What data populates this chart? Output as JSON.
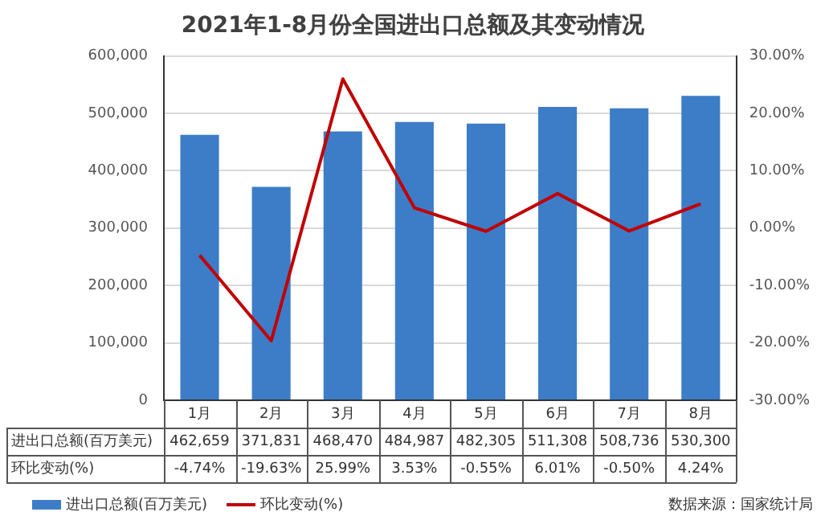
{
  "chart_data": {
    "type": "bar",
    "title": "2021年1-8月份全国进出口总额及其变动情况",
    "categories": [
      "1月",
      "2月",
      "3月",
      "4月",
      "5月",
      "6月",
      "7月",
      "8月"
    ],
    "series": [
      {
        "name": "进出口总额(百万美元)",
        "color": "#3d7dc8",
        "values": [
          462659,
          371831,
          468470,
          484987,
          482305,
          511308,
          508736,
          530300
        ],
        "value_labels": [
          "462,659",
          "371,831",
          "468,470",
          "484,987",
          "482,305",
          "511,308",
          "508,736",
          "530,300"
        ]
      },
      {
        "name": "环比变动(%)",
        "type": "line",
        "axis": "y2",
        "color": "#c00000",
        "values": [
          -4.74,
          -19.63,
          25.99,
          3.53,
          -0.55,
          6.01,
          -0.5,
          4.24
        ],
        "value_labels": [
          "-4.74%",
          "-19.63%",
          "25.99%",
          "3.53%",
          "-0.55%",
          "6.01%",
          "-0.50%",
          "4.24%"
        ]
      }
    ],
    "ylim": [
      0,
      600000
    ],
    "yticks": [
      0,
      {
        "value": 100000,
        "label": "100,000"
      },
      {
        "value": 200000,
        "label": "200,000"
      },
      {
        "value": 300000,
        "label": "300,000"
      },
      {
        "value": 400000,
        "label": "400,000"
      },
      {
        "value": 500000,
        "label": "500,000"
      },
      {
        "value": 600000,
        "label": "600,000"
      }
    ],
    "y2lim": [
      -30,
      30
    ],
    "y2ticks": [
      {
        "value": -30,
        "label": "-30.00%"
      },
      {
        "value": -20,
        "label": "-20.00%"
      },
      {
        "value": -10,
        "label": "-10.00%"
      },
      {
        "value": 0,
        "label": "0.00%"
      },
      {
        "value": 10,
        "label": "10.00%"
      },
      {
        "value": 20,
        "label": "20.00%"
      },
      {
        "value": 30,
        "label": "30.00%"
      }
    ],
    "grid": "y",
    "legend": "bottom left",
    "marker": "none",
    "data_labels": true,
    "annotations": [
      "数据来源：国家统计局"
    ]
  }
}
